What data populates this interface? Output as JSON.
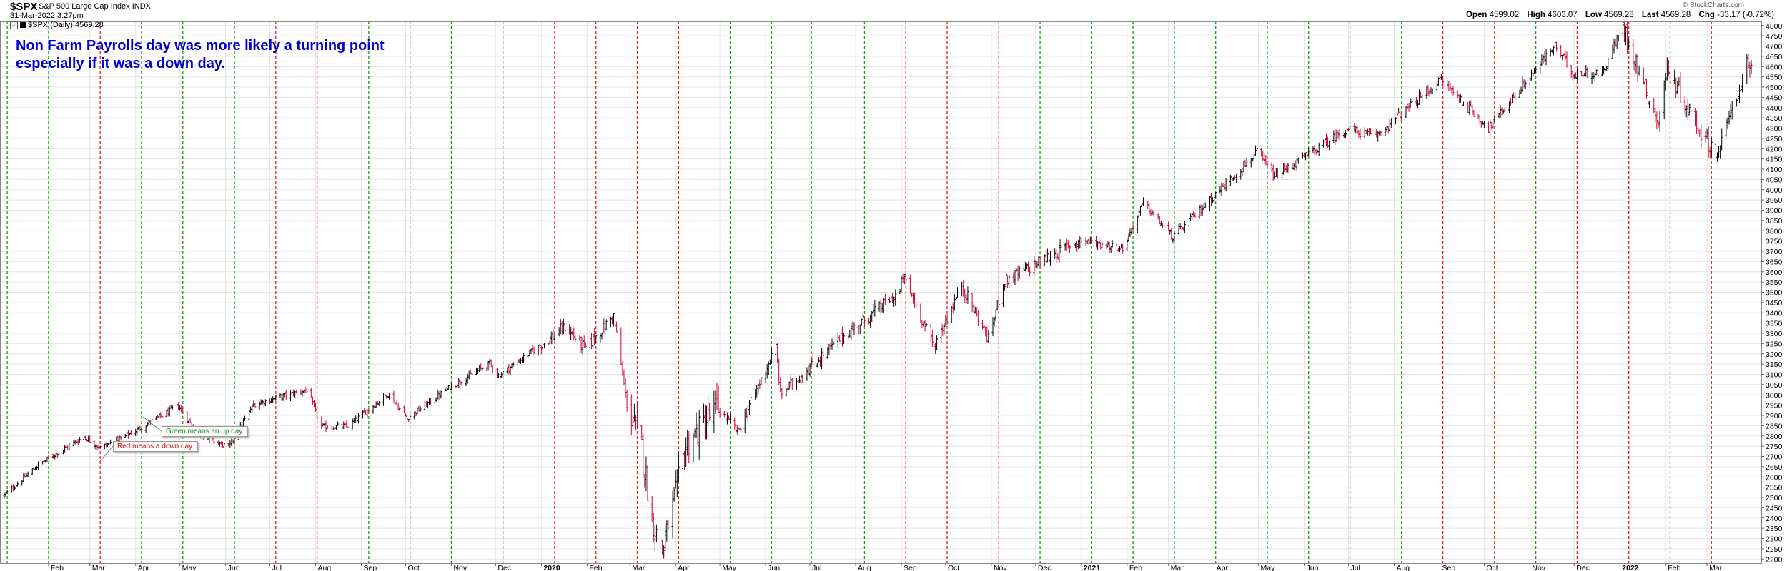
{
  "header": {
    "symbol": "$SPX",
    "name": "S&P 500 Large Cap Index",
    "exchange": "INDX",
    "date": "31-Mar-2022 3:27pm",
    "legend": "$SPX (Daily) 4569.28",
    "brand": "© StockCharts.com",
    "quote": {
      "open_label": "Open",
      "open": "4599.02",
      "high_label": "High",
      "high": "4603.07",
      "low_label": "Low",
      "low": "4569.28",
      "last_label": "Last",
      "last": "4569.28",
      "chg_label": "Chg",
      "chg": "-33.17 (-0.72%)"
    }
  },
  "annotation": {
    "line1": "Non Farm Payrolls day was more likely a turning point",
    "line2": "especially if it was a down day."
  },
  "callouts": {
    "green": "Green means an up day.",
    "red": "Red means a down day."
  },
  "colors": {
    "up": "#000000",
    "down": "#d00030",
    "nfp_up": "#1a9a1a",
    "nfp_down": "#e02020",
    "grid": "#e4e4e4",
    "note": "#0000cc"
  },
  "chart_data": {
    "type": "ohlc",
    "title": "$SPX (Daily)",
    "ylim": [
      2180,
      4820
    ],
    "y_ticks": [
      2200,
      2250,
      2300,
      2350,
      2400,
      2450,
      2500,
      2550,
      2600,
      2650,
      2700,
      2750,
      2800,
      2850,
      2900,
      2950,
      3000,
      3050,
      3100,
      3150,
      3200,
      3250,
      3300,
      3350,
      3400,
      3450,
      3500,
      3550,
      3600,
      3650,
      3700,
      3750,
      3800,
      3850,
      3900,
      3950,
      4000,
      4050,
      4100,
      4150,
      4200,
      4250,
      4300,
      4350,
      4400,
      4450,
      4500,
      4550,
      4600,
      4650,
      4700,
      4750,
      4800
    ],
    "x_labels": [
      {
        "label": "Feb",
        "date": "2019-02-01"
      },
      {
        "label": "Mar",
        "date": "2019-03-01"
      },
      {
        "label": "Apr",
        "date": "2019-04-01"
      },
      {
        "label": "May",
        "date": "2019-05-01"
      },
      {
        "label": "Jun",
        "date": "2019-06-01"
      },
      {
        "label": "Jul",
        "date": "2019-07-01"
      },
      {
        "label": "Aug",
        "date": "2019-08-01"
      },
      {
        "label": "Sep",
        "date": "2019-09-01"
      },
      {
        "label": "Oct",
        "date": "2019-10-01"
      },
      {
        "label": "Nov",
        "date": "2019-11-01"
      },
      {
        "label": "Dec",
        "date": "2019-12-01"
      },
      {
        "label": "2020",
        "date": "2020-01-01",
        "bold": true
      },
      {
        "label": "Feb",
        "date": "2020-02-01"
      },
      {
        "label": "Mar",
        "date": "2020-03-01"
      },
      {
        "label": "Apr",
        "date": "2020-04-01"
      },
      {
        "label": "May",
        "date": "2020-05-01"
      },
      {
        "label": "Jun",
        "date": "2020-06-01"
      },
      {
        "label": "Jul",
        "date": "2020-07-01"
      },
      {
        "label": "Aug",
        "date": "2020-08-01"
      },
      {
        "label": "Sep",
        "date": "2020-09-01"
      },
      {
        "label": "Oct",
        "date": "2020-10-01"
      },
      {
        "label": "Nov",
        "date": "2020-11-01"
      },
      {
        "label": "Dec",
        "date": "2020-12-01"
      },
      {
        "label": "2021",
        "date": "2021-01-01",
        "bold": true
      },
      {
        "label": "Feb",
        "date": "2021-02-01"
      },
      {
        "label": "Mar",
        "date": "2021-03-01"
      },
      {
        "label": "Apr",
        "date": "2021-04-01"
      },
      {
        "label": "May",
        "date": "2021-05-01"
      },
      {
        "label": "Jun",
        "date": "2021-06-01"
      },
      {
        "label": "Jul",
        "date": "2021-07-01"
      },
      {
        "label": "Aug",
        "date": "2021-08-01"
      },
      {
        "label": "Sep",
        "date": "2021-09-01"
      },
      {
        "label": "Oct",
        "date": "2021-10-01"
      },
      {
        "label": "Nov",
        "date": "2021-11-01"
      },
      {
        "label": "Dec",
        "date": "2021-12-01"
      },
      {
        "label": "2022",
        "date": "2022-01-01",
        "bold": true
      },
      {
        "label": "Feb",
        "date": "2022-02-01"
      },
      {
        "label": "Mar",
        "date": "2022-03-01"
      }
    ],
    "date_range": [
      "2019-01-02",
      "2022-03-31"
    ],
    "nfp_days": [
      {
        "date": "2019-01-04",
        "dir": "up"
      },
      {
        "date": "2019-02-01",
        "dir": "up"
      },
      {
        "date": "2019-03-08",
        "dir": "down"
      },
      {
        "date": "2019-04-05",
        "dir": "up"
      },
      {
        "date": "2019-05-03",
        "dir": "up"
      },
      {
        "date": "2019-06-07",
        "dir": "up"
      },
      {
        "date": "2019-07-05",
        "dir": "down"
      },
      {
        "date": "2019-08-02",
        "dir": "down"
      },
      {
        "date": "2019-09-06",
        "dir": "up"
      },
      {
        "date": "2019-10-04",
        "dir": "up"
      },
      {
        "date": "2019-11-01",
        "dir": "up"
      },
      {
        "date": "2019-12-06",
        "dir": "up"
      },
      {
        "date": "2020-01-10",
        "dir": "down"
      },
      {
        "date": "2020-02-07",
        "dir": "down"
      },
      {
        "date": "2020-03-06",
        "dir": "down"
      },
      {
        "date": "2020-04-03",
        "dir": "down"
      },
      {
        "date": "2020-05-08",
        "dir": "up"
      },
      {
        "date": "2020-06-05",
        "dir": "up"
      },
      {
        "date": "2020-07-02",
        "dir": "up"
      },
      {
        "date": "2020-08-07",
        "dir": "up"
      },
      {
        "date": "2020-09-04",
        "dir": "down"
      },
      {
        "date": "2020-10-02",
        "dir": "down"
      },
      {
        "date": "2020-11-06",
        "dir": "down"
      },
      {
        "date": "2020-12-04",
        "dir": "up"
      },
      {
        "date": "2021-01-08",
        "dir": "up"
      },
      {
        "date": "2021-02-05",
        "dir": "up"
      },
      {
        "date": "2021-03-05",
        "dir": "up"
      },
      {
        "date": "2021-04-02",
        "dir": "up"
      },
      {
        "date": "2021-05-07",
        "dir": "up"
      },
      {
        "date": "2021-06-04",
        "dir": "up"
      },
      {
        "date": "2021-07-02",
        "dir": "up"
      },
      {
        "date": "2021-08-06",
        "dir": "up"
      },
      {
        "date": "2021-09-03",
        "dir": "down"
      },
      {
        "date": "2021-10-08",
        "dir": "down"
      },
      {
        "date": "2021-11-05",
        "dir": "up"
      },
      {
        "date": "2021-12-03",
        "dir": "down"
      },
      {
        "date": "2022-01-07",
        "dir": "down"
      },
      {
        "date": "2022-02-04",
        "dir": "up"
      },
      {
        "date": "2022-03-04",
        "dir": "down"
      }
    ],
    "close_path": [
      {
        "date": "2019-01-02",
        "close": 2510
      },
      {
        "date": "2019-01-25",
        "close": 2660
      },
      {
        "date": "2019-02-25",
        "close": 2796
      },
      {
        "date": "2019-03-08",
        "close": 2743
      },
      {
        "date": "2019-03-25",
        "close": 2798
      },
      {
        "date": "2019-04-30",
        "close": 2945
      },
      {
        "date": "2019-05-13",
        "close": 2811
      },
      {
        "date": "2019-06-03",
        "close": 2744
      },
      {
        "date": "2019-06-20",
        "close": 2954
      },
      {
        "date": "2019-07-26",
        "close": 3025
      },
      {
        "date": "2019-08-05",
        "close": 2844
      },
      {
        "date": "2019-08-23",
        "close": 2847
      },
      {
        "date": "2019-09-19",
        "close": 3006
      },
      {
        "date": "2019-10-02",
        "close": 2887
      },
      {
        "date": "2019-10-31",
        "close": 3037
      },
      {
        "date": "2019-11-27",
        "close": 3153
      },
      {
        "date": "2019-12-03",
        "close": 3093
      },
      {
        "date": "2020-01-17",
        "close": 3330
      },
      {
        "date": "2020-01-31",
        "close": 3226
      },
      {
        "date": "2020-02-19",
        "close": 3386
      },
      {
        "date": "2020-02-28",
        "close": 2954
      },
      {
        "date": "2020-03-09",
        "close": 2746
      },
      {
        "date": "2020-03-16",
        "close": 2386
      },
      {
        "date": "2020-03-23",
        "close": 2237
      },
      {
        "date": "2020-04-08",
        "close": 2750
      },
      {
        "date": "2020-04-29",
        "close": 2939
      },
      {
        "date": "2020-05-13",
        "close": 2820
      },
      {
        "date": "2020-06-08",
        "close": 3232
      },
      {
        "date": "2020-06-11",
        "close": 3002
      },
      {
        "date": "2020-07-22",
        "close": 3276
      },
      {
        "date": "2020-08-31",
        "close": 3500
      },
      {
        "date": "2020-09-02",
        "close": 3580
      },
      {
        "date": "2020-09-23",
        "close": 3237
      },
      {
        "date": "2020-10-12",
        "close": 3534
      },
      {
        "date": "2020-10-30",
        "close": 3270
      },
      {
        "date": "2020-11-09",
        "close": 3550
      },
      {
        "date": "2020-12-31",
        "close": 3756
      },
      {
        "date": "2021-01-29",
        "close": 3714
      },
      {
        "date": "2021-02-12",
        "close": 3934
      },
      {
        "date": "2021-03-04",
        "close": 3768
      },
      {
        "date": "2021-04-30",
        "close": 4181
      },
      {
        "date": "2021-05-12",
        "close": 4063
      },
      {
        "date": "2021-06-30",
        "close": 4297
      },
      {
        "date": "2021-07-19",
        "close": 4258
      },
      {
        "date": "2021-09-02",
        "close": 4537
      },
      {
        "date": "2021-10-04",
        "close": 4300
      },
      {
        "date": "2021-11-18",
        "close": 4704
      },
      {
        "date": "2021-11-30",
        "close": 4567
      },
      {
        "date": "2021-12-20",
        "close": 4568
      },
      {
        "date": "2022-01-03",
        "close": 4796
      },
      {
        "date": "2022-01-27",
        "close": 4326
      },
      {
        "date": "2022-02-02",
        "close": 4589
      },
      {
        "date": "2022-02-24",
        "close": 4288
      },
      {
        "date": "2022-03-08",
        "close": 4170
      },
      {
        "date": "2022-03-29",
        "close": 4631
      },
      {
        "date": "2022-03-31",
        "close": 4569
      }
    ]
  }
}
